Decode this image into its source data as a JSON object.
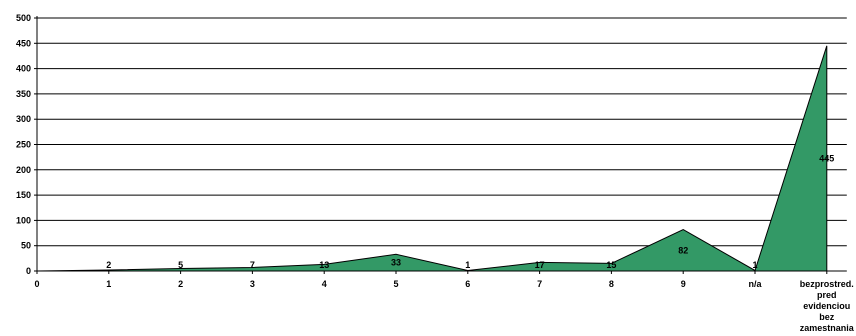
{
  "chart_data": {
    "type": "area",
    "title": "",
    "xlabel": "",
    "ylabel": "",
    "categories": [
      "0",
      "1",
      "2",
      "3",
      "4",
      "5",
      "6",
      "7",
      "8",
      "9",
      "n/a",
      "bezprostred. pred evidenciou bez zamestnania"
    ],
    "category_lines": [
      [
        "0"
      ],
      [
        "1"
      ],
      [
        "2"
      ],
      [
        "3"
      ],
      [
        "4"
      ],
      [
        "5"
      ],
      [
        "6"
      ],
      [
        "7"
      ],
      [
        "8"
      ],
      [
        "9"
      ],
      [
        "n/a"
      ],
      [
        "bezprostred.",
        "pred",
        "evidenciou",
        "bez",
        "zamestnania"
      ]
    ],
    "values": [
      0,
      2,
      5,
      7,
      13,
      33,
      1,
      17,
      15,
      82,
      1,
      445
    ],
    "data_labels": [
      "",
      "2",
      "5",
      "7",
      "13",
      "33",
      "1",
      "17",
      "15",
      "82",
      "1",
      "445"
    ],
    "y_ticks": [
      0,
      50,
      100,
      150,
      200,
      250,
      300,
      350,
      400,
      450,
      500
    ],
    "ylim": [
      0,
      500
    ],
    "grid": true,
    "legend": "none",
    "colors": {
      "fill": "#339966",
      "stroke": "#000000",
      "grid": "#000000"
    }
  }
}
